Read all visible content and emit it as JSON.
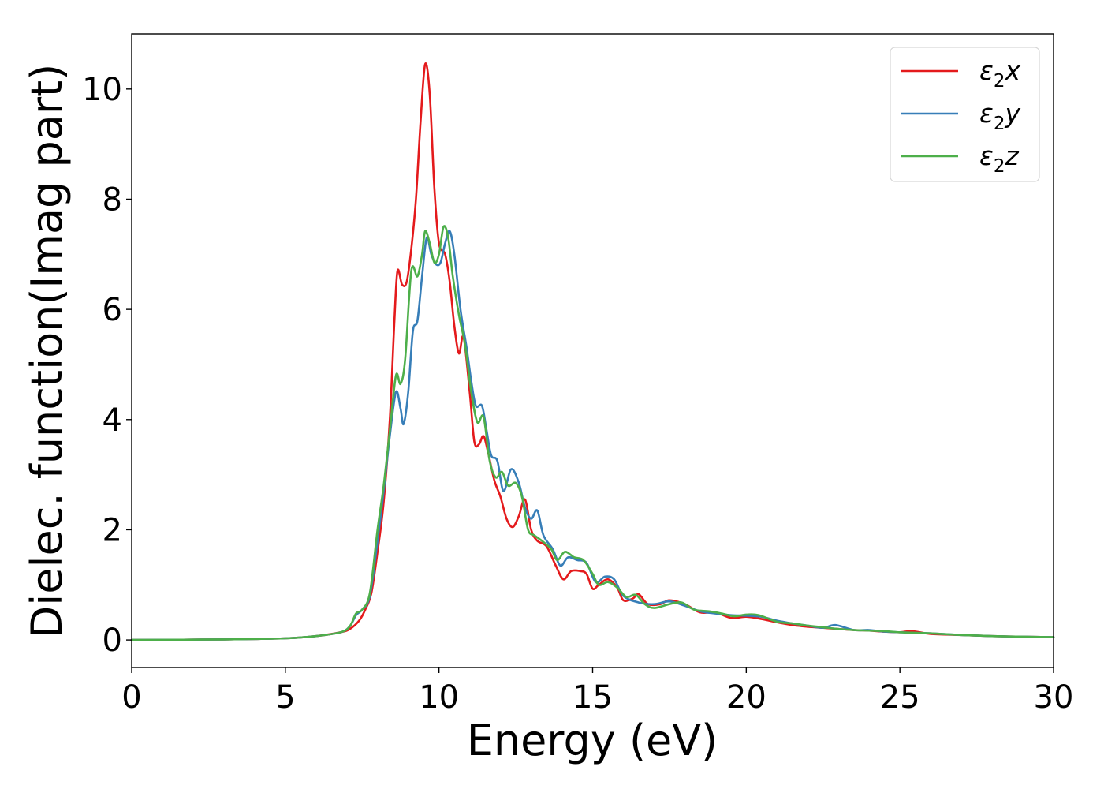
{
  "chart_data": {
    "type": "line",
    "title": "",
    "xlabel": "Energy (eV)",
    "ylabel": "Dielec. function(Imag part)",
    "xlim": [
      0,
      30
    ],
    "ylim": [
      -0.5,
      11
    ],
    "xticks": [
      0,
      5,
      10,
      15,
      20,
      25,
      30
    ],
    "yticks": [
      0,
      2,
      4,
      6,
      8,
      10
    ],
    "grid": false,
    "legend_position": "top-right",
    "series": [
      {
        "name": "ε₂x",
        "legend_base": "ε",
        "legend_sub": "2",
        "legend_suffix": "x",
        "color": "#e41a1c",
        "points": [
          [
            0,
            0.0
          ],
          [
            3,
            0.01
          ],
          [
            5,
            0.03
          ],
          [
            6,
            0.07
          ],
          [
            6.8,
            0.14
          ],
          [
            7.1,
            0.2
          ],
          [
            7.4,
            0.35
          ],
          [
            7.6,
            0.55
          ],
          [
            7.8,
            0.85
          ],
          [
            8.0,
            1.6
          ],
          [
            8.2,
            2.5
          ],
          [
            8.4,
            4.0
          ],
          [
            8.55,
            5.8
          ],
          [
            8.65,
            6.7
          ],
          [
            8.8,
            6.45
          ],
          [
            8.95,
            6.5
          ],
          [
            9.1,
            7.1
          ],
          [
            9.25,
            8.0
          ],
          [
            9.4,
            9.4
          ],
          [
            9.55,
            10.45
          ],
          [
            9.7,
            9.9
          ],
          [
            9.85,
            8.2
          ],
          [
            10.0,
            7.2
          ],
          [
            10.2,
            7.0
          ],
          [
            10.35,
            6.5
          ],
          [
            10.5,
            5.7
          ],
          [
            10.65,
            5.2
          ],
          [
            10.8,
            5.5
          ],
          [
            11.0,
            4.5
          ],
          [
            11.15,
            3.6
          ],
          [
            11.3,
            3.55
          ],
          [
            11.45,
            3.7
          ],
          [
            11.6,
            3.4
          ],
          [
            11.8,
            2.9
          ],
          [
            12.0,
            2.6
          ],
          [
            12.2,
            2.2
          ],
          [
            12.4,
            2.05
          ],
          [
            12.6,
            2.25
          ],
          [
            12.8,
            2.55
          ],
          [
            13.0,
            2.0
          ],
          [
            13.2,
            1.8
          ],
          [
            13.5,
            1.7
          ],
          [
            13.8,
            1.35
          ],
          [
            14.05,
            1.1
          ],
          [
            14.3,
            1.25
          ],
          [
            14.6,
            1.25
          ],
          [
            14.8,
            1.2
          ],
          [
            15.0,
            0.93
          ],
          [
            15.2,
            1.0
          ],
          [
            15.5,
            1.1
          ],
          [
            15.8,
            0.95
          ],
          [
            16.0,
            0.72
          ],
          [
            16.3,
            0.75
          ],
          [
            16.5,
            0.83
          ],
          [
            16.8,
            0.65
          ],
          [
            17.2,
            0.65
          ],
          [
            17.5,
            0.72
          ],
          [
            18.0,
            0.65
          ],
          [
            18.5,
            0.5
          ],
          [
            19.0,
            0.5
          ],
          [
            19.5,
            0.4
          ],
          [
            20.0,
            0.42
          ],
          [
            20.5,
            0.38
          ],
          [
            21.0,
            0.32
          ],
          [
            21.5,
            0.27
          ],
          [
            22.0,
            0.24
          ],
          [
            22.5,
            0.22
          ],
          [
            23.0,
            0.2
          ],
          [
            23.5,
            0.18
          ],
          [
            24.0,
            0.17
          ],
          [
            24.5,
            0.15
          ],
          [
            25.0,
            0.14
          ],
          [
            25.4,
            0.16
          ],
          [
            26.0,
            0.11
          ],
          [
            27.0,
            0.09
          ],
          [
            28.0,
            0.07
          ],
          [
            29.0,
            0.06
          ],
          [
            30.0,
            0.05
          ]
        ]
      },
      {
        "name": "ε₂y",
        "legend_base": "ε",
        "legend_sub": "2",
        "legend_suffix": "y",
        "color": "#377eb8",
        "points": [
          [
            0,
            0.0
          ],
          [
            3,
            0.01
          ],
          [
            5,
            0.03
          ],
          [
            6,
            0.07
          ],
          [
            6.8,
            0.14
          ],
          [
            7.1,
            0.25
          ],
          [
            7.3,
            0.45
          ],
          [
            7.5,
            0.55
          ],
          [
            7.75,
            0.8
          ],
          [
            8.0,
            1.8
          ],
          [
            8.2,
            2.7
          ],
          [
            8.4,
            3.7
          ],
          [
            8.6,
            4.5
          ],
          [
            8.75,
            4.2
          ],
          [
            8.85,
            3.92
          ],
          [
            9.0,
            4.5
          ],
          [
            9.15,
            5.6
          ],
          [
            9.3,
            5.8
          ],
          [
            9.45,
            6.6
          ],
          [
            9.6,
            7.3
          ],
          [
            9.75,
            7.0
          ],
          [
            9.9,
            6.82
          ],
          [
            10.05,
            6.85
          ],
          [
            10.2,
            7.2
          ],
          [
            10.35,
            7.42
          ],
          [
            10.5,
            7.0
          ],
          [
            10.7,
            6.0
          ],
          [
            10.9,
            5.3
          ],
          [
            11.05,
            4.7
          ],
          [
            11.2,
            4.25
          ],
          [
            11.4,
            4.25
          ],
          [
            11.55,
            3.8
          ],
          [
            11.7,
            3.35
          ],
          [
            11.9,
            3.25
          ],
          [
            12.1,
            2.7
          ],
          [
            12.35,
            3.1
          ],
          [
            12.6,
            2.85
          ],
          [
            12.8,
            2.4
          ],
          [
            13.0,
            2.2
          ],
          [
            13.2,
            2.35
          ],
          [
            13.4,
            1.9
          ],
          [
            13.7,
            1.65
          ],
          [
            13.95,
            1.35
          ],
          [
            14.2,
            1.5
          ],
          [
            14.5,
            1.45
          ],
          [
            14.8,
            1.4
          ],
          [
            15.1,
            1.05
          ],
          [
            15.4,
            1.15
          ],
          [
            15.7,
            1.1
          ],
          [
            16.0,
            0.8
          ],
          [
            16.5,
            0.68
          ],
          [
            17.0,
            0.65
          ],
          [
            17.5,
            0.7
          ],
          [
            18.0,
            0.62
          ],
          [
            18.5,
            0.52
          ],
          [
            19.0,
            0.48
          ],
          [
            19.5,
            0.45
          ],
          [
            20.0,
            0.44
          ],
          [
            20.5,
            0.42
          ],
          [
            21.0,
            0.35
          ],
          [
            21.5,
            0.3
          ],
          [
            22.0,
            0.26
          ],
          [
            22.5,
            0.22
          ],
          [
            22.9,
            0.27
          ],
          [
            23.5,
            0.18
          ],
          [
            24.0,
            0.18
          ],
          [
            24.5,
            0.15
          ],
          [
            25.0,
            0.14
          ],
          [
            25.5,
            0.13
          ],
          [
            26.0,
            0.12
          ],
          [
            27.0,
            0.09
          ],
          [
            28.0,
            0.07
          ],
          [
            29.0,
            0.06
          ],
          [
            30.0,
            0.05
          ]
        ]
      },
      {
        "name": "ε₂z",
        "legend_base": "ε",
        "legend_sub": "2",
        "legend_suffix": "z",
        "color": "#4daf4a",
        "points": [
          [
            0,
            0.0
          ],
          [
            3,
            0.01
          ],
          [
            5,
            0.03
          ],
          [
            6,
            0.07
          ],
          [
            6.8,
            0.14
          ],
          [
            7.1,
            0.25
          ],
          [
            7.3,
            0.48
          ],
          [
            7.5,
            0.55
          ],
          [
            7.75,
            0.85
          ],
          [
            8.0,
            2.0
          ],
          [
            8.2,
            2.8
          ],
          [
            8.4,
            3.8
          ],
          [
            8.6,
            4.8
          ],
          [
            8.75,
            4.65
          ],
          [
            8.9,
            5.1
          ],
          [
            9.1,
            6.7
          ],
          [
            9.3,
            6.6
          ],
          [
            9.45,
            7.0
          ],
          [
            9.55,
            7.42
          ],
          [
            9.7,
            7.2
          ],
          [
            9.85,
            6.85
          ],
          [
            10.0,
            7.0
          ],
          [
            10.15,
            7.5
          ],
          [
            10.3,
            7.3
          ],
          [
            10.45,
            6.6
          ],
          [
            10.65,
            5.9
          ],
          [
            10.85,
            5.35
          ],
          [
            11.05,
            4.5
          ],
          [
            11.25,
            3.95
          ],
          [
            11.45,
            4.05
          ],
          [
            11.65,
            3.25
          ],
          [
            11.85,
            2.95
          ],
          [
            12.05,
            3.05
          ],
          [
            12.25,
            2.8
          ],
          [
            12.5,
            2.85
          ],
          [
            12.7,
            2.6
          ],
          [
            12.9,
            2.0
          ],
          [
            13.1,
            1.9
          ],
          [
            13.35,
            1.8
          ],
          [
            13.65,
            1.65
          ],
          [
            13.85,
            1.45
          ],
          [
            14.1,
            1.6
          ],
          [
            14.4,
            1.5
          ],
          [
            14.7,
            1.45
          ],
          [
            15.0,
            1.2
          ],
          [
            15.2,
            1.0
          ],
          [
            15.5,
            1.05
          ],
          [
            15.8,
            0.95
          ],
          [
            16.1,
            0.78
          ],
          [
            16.4,
            0.82
          ],
          [
            16.7,
            0.65
          ],
          [
            17.0,
            0.58
          ],
          [
            17.5,
            0.65
          ],
          [
            17.9,
            0.68
          ],
          [
            18.3,
            0.55
          ],
          [
            18.8,
            0.52
          ],
          [
            19.2,
            0.48
          ],
          [
            19.6,
            0.43
          ],
          [
            20.0,
            0.46
          ],
          [
            20.4,
            0.45
          ],
          [
            21.0,
            0.33
          ],
          [
            21.5,
            0.3
          ],
          [
            22.0,
            0.26
          ],
          [
            22.5,
            0.23
          ],
          [
            23.0,
            0.2
          ],
          [
            23.5,
            0.18
          ],
          [
            24.0,
            0.17
          ],
          [
            24.5,
            0.16
          ],
          [
            25.0,
            0.14
          ],
          [
            25.5,
            0.13
          ],
          [
            26.0,
            0.12
          ],
          [
            27.0,
            0.09
          ],
          [
            28.0,
            0.07
          ],
          [
            29.0,
            0.06
          ],
          [
            30.0,
            0.05
          ]
        ]
      }
    ]
  }
}
